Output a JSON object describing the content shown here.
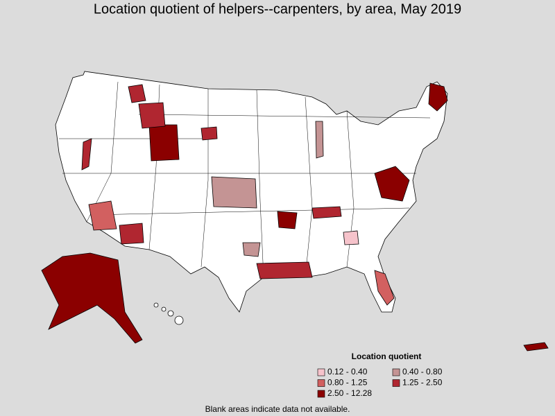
{
  "title": "Location quotient of helpers--carpenters, by area, May 2019",
  "legend": {
    "title": "Location quotient",
    "items": [
      {
        "label": "0.12 - 0.40",
        "color": "#f6c3cb"
      },
      {
        "label": "0.40 - 0.80",
        "color": "#c49494"
      },
      {
        "label": "0.80 - 1.25",
        "color": "#d26060"
      },
      {
        "label": "1.25 - 2.50",
        "color": "#b02630"
      },
      {
        "label": "2.50 - 12.28",
        "color": "#8b0000"
      }
    ]
  },
  "note": "Blank areas indicate data not available."
}
